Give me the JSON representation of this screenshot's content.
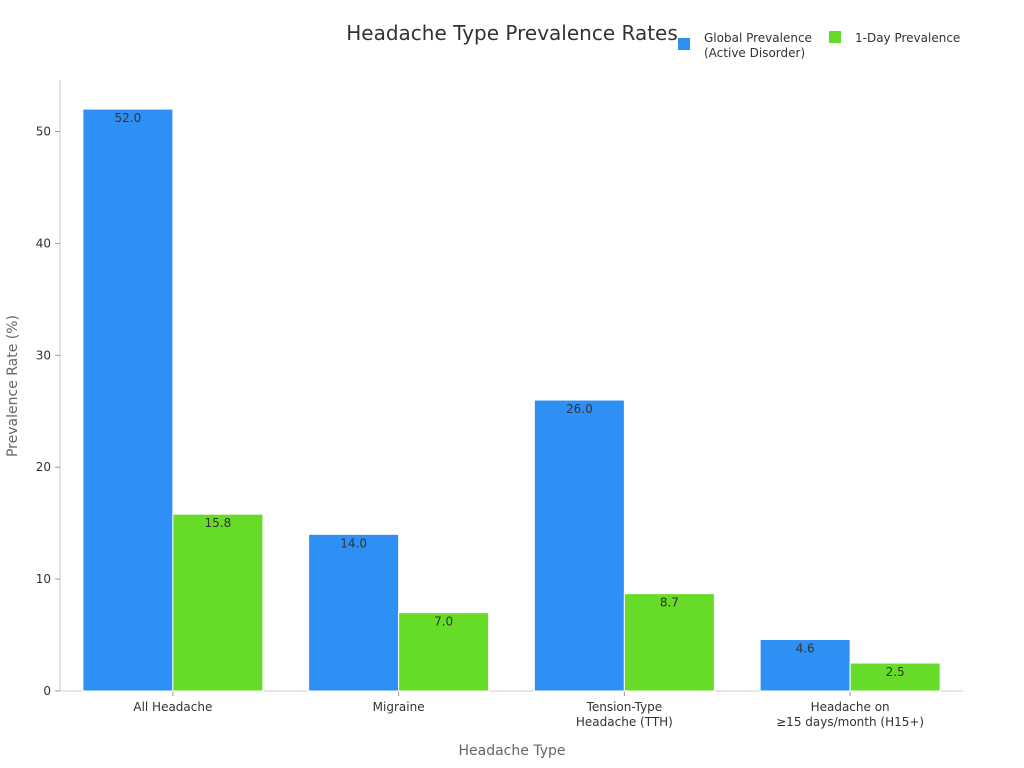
{
  "chart_data": {
    "type": "bar",
    "title": "Headache Type Prevalence Rates",
    "xlabel": "Headache Type",
    "ylabel": "Prevalence Rate (%)",
    "categories": [
      [
        "All Headache"
      ],
      [
        "Migraine"
      ],
      [
        "Tension-Type",
        "Headache (TTH)"
      ],
      [
        "Headache on",
        "≥15 days/month (H15+)"
      ]
    ],
    "series": [
      {
        "name": "Global Prevalence\n(Active Disorder)",
        "name_lines": [
          "Global Prevalence",
          "(Active Disorder)"
        ],
        "color": "#2e90f5",
        "values": [
          52.0,
          14.0,
          26.0,
          4.6
        ]
      },
      {
        "name": "1-Day Prevalence",
        "name_lines": [
          "1-Day Prevalence"
        ],
        "color": "#66db28",
        "values": [
          15.8,
          7.0,
          8.7,
          2.5
        ]
      }
    ],
    "ylim": [
      0,
      54.6
    ],
    "yticks": [
      0,
      10,
      20,
      30,
      40,
      50
    ],
    "grid": false,
    "legend": "top-right",
    "data_labels": true
  }
}
